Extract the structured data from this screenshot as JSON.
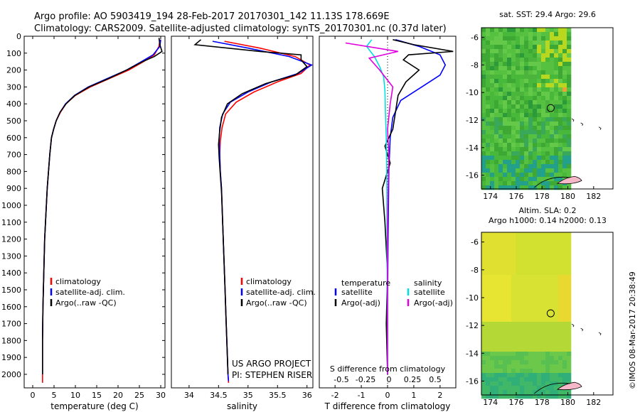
{
  "header": {
    "line1": "Argo profile: AO 5903419_194 28-Feb-2017 20170301_142 11.13S 178.669E",
    "line2": "Climatology: CARS2009. Satellite-adjusted climatology: synTS_20170301.nc (0.37d later)"
  },
  "side_stamp": "©IMOS 08-Mar-2017 20:38:49",
  "project_note": [
    "US ARGO PROJECT",
    "PI: STEPHEN RISER"
  ],
  "colors": {
    "climatology": "#ff0000",
    "satellite": "#0000ff",
    "argo": "#000000",
    "sat_diff": "#00e0e0",
    "argo_diff": "#e000e0"
  },
  "chart_data": [
    {
      "type": "line",
      "xlabel": "temperature (deg C)",
      "ylabel": "",
      "xlim": [
        -2,
        31
      ],
      "ylim": [
        2080,
        0
      ],
      "xticks": [
        0,
        5,
        10,
        15,
        20,
        25,
        30
      ],
      "yticks": [
        0,
        100,
        200,
        300,
        400,
        500,
        600,
        700,
        800,
        900,
        1000,
        1100,
        1200,
        1300,
        1400,
        1500,
        1600,
        1700,
        1800,
        1900,
        2000
      ],
      "legend": [
        "climatology",
        "satellite-adj. clim.",
        "Argo(..raw -QC)"
      ],
      "series": [
        {
          "name": "climatology",
          "color": "#ff0000",
          "x": [
            29.8,
            29.6,
            28.5,
            26.0,
            22.5,
            18.0,
            13.5,
            10.0,
            7.8,
            6.5,
            5.5,
            4.9,
            4.4,
            4.0,
            3.7,
            3.4,
            3.2,
            3.0,
            2.8,
            2.7,
            2.6,
            2.5,
            2.4,
            2.3,
            2.3
          ],
          "y": [
            20,
            60,
            110,
            150,
            200,
            250,
            300,
            350,
            400,
            450,
            500,
            550,
            600,
            700,
            800,
            900,
            1000,
            1100,
            1200,
            1300,
            1400,
            1500,
            1600,
            1800,
            2050
          ]
        },
        {
          "name": "satellite-adj. clim.",
          "color": "#0000ff",
          "x": [
            30.0,
            29.8,
            28.2,
            25.5,
            22.0,
            17.5,
            13.0,
            9.8,
            7.7,
            6.4,
            5.5,
            4.9,
            4.4,
            4.0,
            3.7,
            3.4,
            3.2,
            3.0,
            2.8,
            2.7,
            2.6,
            2.5,
            2.4,
            2.3,
            2.3
          ],
          "y": [
            20,
            60,
            110,
            150,
            200,
            250,
            300,
            350,
            400,
            450,
            500,
            550,
            600,
            700,
            800,
            900,
            1000,
            1100,
            1200,
            1300,
            1400,
            1500,
            1600,
            1800,
            2000
          ]
        },
        {
          "name": "Argo(..raw -QC)",
          "color": "#000000",
          "x": [
            29.6,
            29.8,
            30.3,
            28.5,
            25.8,
            22.0,
            17.8,
            13.2,
            9.9,
            7.8,
            6.4,
            5.5,
            4.9,
            4.4,
            4.0,
            3.7,
            3.4,
            3.2,
            3.0,
            2.8,
            2.7,
            2.6,
            2.5,
            2.4,
            2.3,
            2.3
          ],
          "y": [
            10,
            50,
            90,
            120,
            150,
            200,
            250,
            300,
            350,
            400,
            450,
            500,
            550,
            600,
            700,
            800,
            900,
            1000,
            1100,
            1200,
            1300,
            1400,
            1500,
            1600,
            1800,
            2000
          ]
        }
      ]
    },
    {
      "type": "line",
      "xlabel": "salinity",
      "xlim": [
        33.7,
        36.1
      ],
      "ylim": [
        2080,
        0
      ],
      "xticks": [
        34,
        34.5,
        35,
        35.5,
        36
      ],
      "legend": [
        "climatology",
        "satellite-adj. clim.",
        "Argo(..raw -QC)"
      ],
      "series": [
        {
          "name": "climatology",
          "color": "#ff0000",
          "x": [
            34.6,
            35.2,
            35.8,
            36.05,
            35.9,
            35.5,
            35.1,
            34.8,
            34.62,
            34.56,
            34.53,
            34.52,
            34.53,
            34.55,
            34.57,
            34.59,
            34.61,
            34.63,
            34.65,
            34.66,
            34.67
          ],
          "y": [
            30,
            70,
            120,
            170,
            220,
            270,
            330,
            390,
            460,
            540,
            620,
            700,
            800,
            900,
            1100,
            1300,
            1500,
            1700,
            1900,
            2000,
            2050
          ]
        },
        {
          "name": "satellite-adj. clim.",
          "color": "#0000ff",
          "x": [
            34.4,
            35.0,
            35.7,
            36.08,
            35.85,
            35.4,
            35.0,
            34.7,
            34.57,
            34.52,
            34.51,
            34.52,
            34.53,
            34.55,
            34.57,
            34.59,
            34.61,
            34.63,
            34.65,
            34.66,
            34.67
          ],
          "y": [
            30,
            70,
            120,
            170,
            220,
            270,
            330,
            390,
            460,
            540,
            620,
            700,
            800,
            900,
            1100,
            1300,
            1500,
            1700,
            1900,
            2000,
            2040
          ]
        },
        {
          "name": "Argo(..raw -QC)",
          "color": "#000000",
          "x": [
            34.2,
            34.1,
            35.2,
            35.9,
            35.9,
            36.0,
            35.8,
            35.3,
            34.9,
            34.65,
            34.55,
            34.52,
            34.5,
            34.51,
            34.53,
            34.55,
            34.57,
            34.59,
            34.61,
            34.63,
            34.65,
            34.66
          ],
          "y": [
            20,
            50,
            90,
            110,
            140,
            180,
            230,
            280,
            340,
            400,
            480,
            560,
            640,
            720,
            820,
            920,
            1100,
            1300,
            1500,
            1700,
            1900,
            2000
          ]
        }
      ]
    },
    {
      "type": "line",
      "xlabel": "T difference from climatology",
      "xlabel_top": "S difference from climatology",
      "xlim": [
        -2.6,
        2.6
      ],
      "ylim": [
        2080,
        0
      ],
      "xticks": [
        -2,
        -1,
        0,
        1,
        2
      ],
      "xticks_top": [
        "-0.5",
        "-0.25",
        "0",
        "0.25",
        "0.5"
      ],
      "legend_titles": [
        "temperature",
        "salinity"
      ],
      "legend": [
        "satellite",
        "Argo(-adj)",
        "satellite",
        "Argo(-adj)"
      ],
      "series": [
        {
          "name": "temperature satellite",
          "color": "#0000ff",
          "x": [
            0.3,
            1.2,
            2.0,
            2.2,
            2.0,
            1.3,
            0.5,
            0.2,
            0.1,
            0.05,
            0.02,
            0.0,
            0.0
          ],
          "y": [
            20,
            60,
            110,
            170,
            230,
            300,
            380,
            480,
            600,
            800,
            1200,
            1600,
            2000
          ]
        },
        {
          "name": "temperature Argo(-adj)",
          "color": "#000000",
          "x": [
            0.2,
            1.0,
            2.5,
            0.8,
            0.6,
            1.2,
            0.7,
            0.4,
            0.3,
            0.2,
            -0.1,
            0.1,
            -0.2,
            -0.1,
            0.0,
            -0.05,
            0.0
          ],
          "y": [
            20,
            50,
            90,
            110,
            140,
            200,
            270,
            350,
            450,
            550,
            650,
            750,
            900,
            1100,
            1400,
            1700,
            2000
          ]
        },
        {
          "name": "salinity satellite",
          "color": "#00e0e0",
          "x": [
            -0.6,
            -0.8,
            -0.5,
            -0.3,
            -0.15,
            -0.1,
            -0.08,
            -0.05,
            -0.03,
            -0.02,
            0.0
          ],
          "y": [
            20,
            60,
            120,
            180,
            240,
            320,
            450,
            600,
            800,
            1200,
            2000
          ]
        },
        {
          "name": "salinity Argo(-adj)",
          "color": "#e000e0",
          "x": [
            -1.6,
            0.4,
            -0.7,
            -0.3,
            0.2,
            0.1,
            0.0,
            0.05,
            0.0,
            0.0
          ],
          "y": [
            40,
            90,
            130,
            200,
            300,
            400,
            550,
            700,
            1100,
            2000
          ]
        }
      ]
    },
    {
      "type": "heatmap",
      "title": "sat. SST: 29.4 Argo: 29.6",
      "xlim": [
        173.3,
        183.5
      ],
      "ylim": [
        -17,
        -5.3
      ],
      "xticks": [
        174,
        176,
        178,
        180,
        182
      ],
      "yticks": [
        -6,
        -8,
        -10,
        -12,
        -14,
        -16
      ],
      "marker": {
        "lon": 178.669,
        "lat": -11.13
      }
    },
    {
      "type": "heatmap",
      "title": "Altim. SLA: 0.2",
      "subtitle": "Argo h1000: 0.14 h2000: 0.13",
      "xlim": [
        173.3,
        183.5
      ],
      "ylim": [
        -17,
        -5.3
      ],
      "xticks": [
        174,
        176,
        178,
        180,
        182
      ],
      "yticks": [
        -6,
        -8,
        -10,
        -12,
        -14,
        -16
      ],
      "marker": {
        "lon": 178.669,
        "lat": -11.13
      }
    }
  ]
}
